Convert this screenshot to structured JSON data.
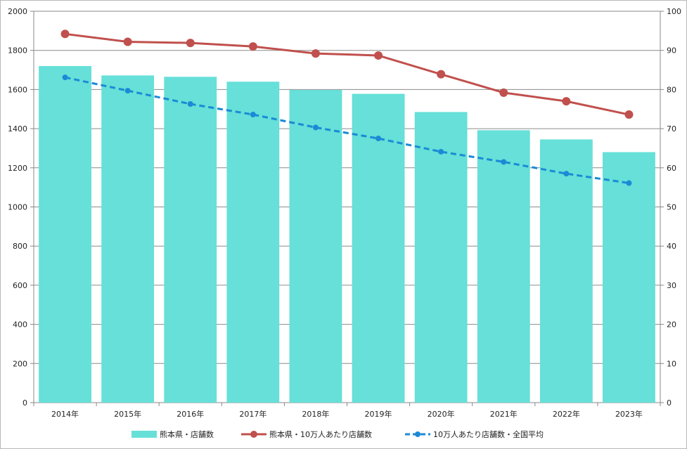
{
  "chart_data": {
    "type": "bar",
    "categories": [
      "2014年",
      "2015年",
      "2016年",
      "2017年",
      "2018年",
      "2019年",
      "2020年",
      "2021年",
      "2022年",
      "2023年"
    ],
    "series": [
      {
        "name": "熊本県・店舗数",
        "type": "bar",
        "axis": "left",
        "color": "#66e0d8",
        "values": [
          1720,
          1672,
          1665,
          1640,
          1598,
          1578,
          1485,
          1392,
          1345,
          1280
        ]
      },
      {
        "name": "熊本県・10万人あたり店舗数",
        "type": "line",
        "axis": "right",
        "color": "#c0504d",
        "dashed": false,
        "values": [
          94.2,
          92.2,
          91.9,
          91.0,
          89.2,
          88.7,
          83.9,
          79.2,
          77.0,
          73.6
        ]
      },
      {
        "name": "10万人あたり店舗数・全国平均",
        "type": "line",
        "axis": "right",
        "color": "#1b8ad6",
        "dashed": true,
        "values": [
          83.1,
          79.7,
          76.3,
          73.6,
          70.3,
          67.5,
          64.1,
          61.5,
          58.5,
          56.1
        ]
      }
    ],
    "y_left": {
      "min": 0,
      "max": 2000,
      "ticks": [
        0,
        200,
        400,
        600,
        800,
        1000,
        1200,
        1400,
        1600,
        1800,
        2000
      ]
    },
    "y_right": {
      "min": 0,
      "max": 100,
      "ticks": [
        0,
        10,
        20,
        30,
        40,
        50,
        60,
        70,
        80,
        90,
        100
      ]
    },
    "grid": true,
    "legend_position": "bottom"
  }
}
